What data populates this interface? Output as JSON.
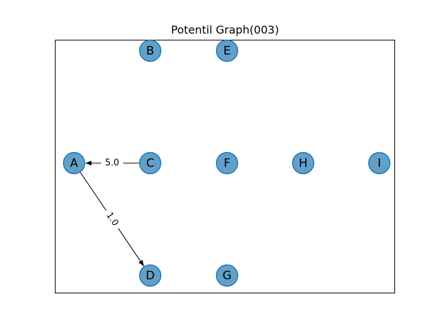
{
  "title": "Potentil Graph(003)",
  "colors": {
    "node_fill": "#1f77b4",
    "edge": "#000000",
    "frame": "#000000",
    "background": "#ffffff"
  },
  "nodes": [
    {
      "id": "A",
      "label": "A"
    },
    {
      "id": "B",
      "label": "B"
    },
    {
      "id": "C",
      "label": "C"
    },
    {
      "id": "D",
      "label": "D"
    },
    {
      "id": "E",
      "label": "E"
    },
    {
      "id": "F",
      "label": "F"
    },
    {
      "id": "G",
      "label": "G"
    },
    {
      "id": "H",
      "label": "H"
    },
    {
      "id": "I",
      "label": "I"
    }
  ],
  "edges": [
    {
      "from": "C",
      "to": "A",
      "label": "5.0"
    },
    {
      "from": "A",
      "to": "D",
      "label": "1.0"
    }
  ]
}
